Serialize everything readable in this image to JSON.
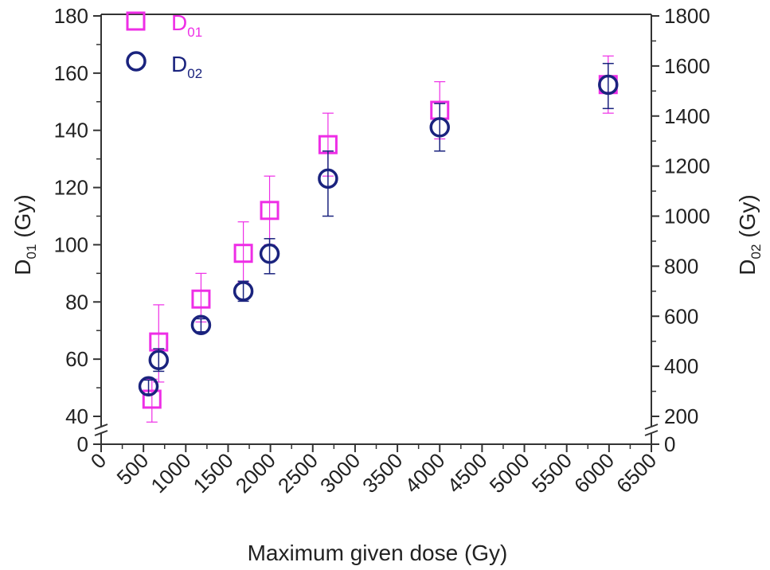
{
  "chart_data": {
    "type": "scatter",
    "xlabel": "Maximum given dose (Gy)",
    "ylabel_left": {
      "main": "D",
      "sub": "01",
      "unit": " (Gy)"
    },
    "ylabel_right": {
      "main": "D",
      "sub": "02",
      "unit": " (Gy)"
    },
    "xlim": [
      0,
      6500
    ],
    "xticks": [
      "0",
      "500",
      "1000",
      "1500",
      "2000",
      "2500",
      "3000",
      "3500",
      "4000",
      "4500",
      "5000",
      "5500",
      "6000",
      "6500"
    ],
    "ylim_left": [
      0,
      180
    ],
    "yticks_left": [
      "0",
      "40",
      "60",
      "80",
      "100",
      "120",
      "140",
      "160",
      "180"
    ],
    "ylim_right": [
      0,
      1800
    ],
    "yticks_right": [
      "0",
      "200",
      "400",
      "600",
      "800",
      "1000",
      "1200",
      "1400",
      "1600",
      "1800"
    ],
    "axis_break": true,
    "legend_position": "top-left",
    "series": [
      {
        "name": {
          "main": "D",
          "sub": "01"
        },
        "axis": "left",
        "marker": "square",
        "color": "#ee2ee6",
        "points": [
          {
            "x": 600,
            "y": 46,
            "err_low": 38,
            "err_high": 53
          },
          {
            "x": 680,
            "y": 66,
            "err_low": 52,
            "err_high": 79
          },
          {
            "x": 1180,
            "y": 81,
            "err_low": 73,
            "err_high": 90
          },
          {
            "x": 1680,
            "y": 97,
            "err_low": 87,
            "err_high": 108
          },
          {
            "x": 1990,
            "y": 112,
            "err_low": 100,
            "err_high": 124
          },
          {
            "x": 2680,
            "y": 135,
            "err_low": 124,
            "err_high": 146
          },
          {
            "x": 4000,
            "y": 147,
            "err_low": 137,
            "err_high": 157
          },
          {
            "x": 5990,
            "y": 156,
            "err_low": 146,
            "err_high": 166
          }
        ]
      },
      {
        "name": {
          "main": "D",
          "sub": "02"
        },
        "axis": "right",
        "marker": "circle",
        "color": "#1a237e",
        "points": [
          {
            "x": 560,
            "y": 320,
            "err_low": 290,
            "err_high": 345
          },
          {
            "x": 680,
            "y": 425,
            "err_low": 380,
            "err_high": 470
          },
          {
            "x": 1180,
            "y": 565,
            "err_low": 538,
            "err_high": 590
          },
          {
            "x": 1680,
            "y": 700,
            "err_low": 660,
            "err_high": 740
          },
          {
            "x": 1990,
            "y": 850,
            "err_low": 770,
            "err_high": 910
          },
          {
            "x": 2680,
            "y": 1150,
            "err_low": 1000,
            "err_high": 1260
          },
          {
            "x": 4000,
            "y": 1355,
            "err_low": 1260,
            "err_high": 1450
          },
          {
            "x": 5990,
            "y": 1525,
            "err_low": 1430,
            "err_high": 1610
          }
        ]
      }
    ]
  }
}
